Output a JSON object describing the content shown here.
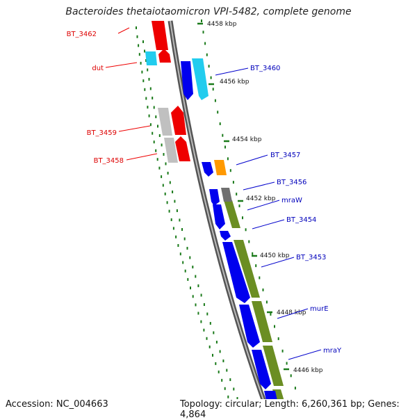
{
  "title": "Bacteroides thetaiotaomicron VPI-5482, complete genome",
  "footer": {
    "accession": "Accession: NC_004663",
    "summary": "Topology: circular; Length: 6,260,361 bp; Genes: 4,864"
  },
  "colors": {
    "forward_gene": "#0000ee",
    "reverse_gene": "#ee0000",
    "rna": "#22ccee",
    "pseudo": "#c0c0c0",
    "gc_track": "#6b8e23",
    "scale_tick": "#1a7a1a",
    "backbone": "#808080",
    "orange_feature": "#ff9900",
    "dark_feature": "#707070"
  },
  "scale_labels": [
    "4458 kbp",
    "4456 kbp",
    "4454 kbp",
    "4452 kbp",
    "4450 kbp",
    "4448 kbp",
    "4446 kbp"
  ],
  "left_labels": [
    "BT_3462",
    "dut",
    "BT_3459",
    "BT_3458"
  ],
  "right_labels": [
    "BT_3460",
    "BT_3457",
    "BT_3456",
    "mraW",
    "BT_3454",
    "BT_3453",
    "murE",
    "mraY"
  ]
}
